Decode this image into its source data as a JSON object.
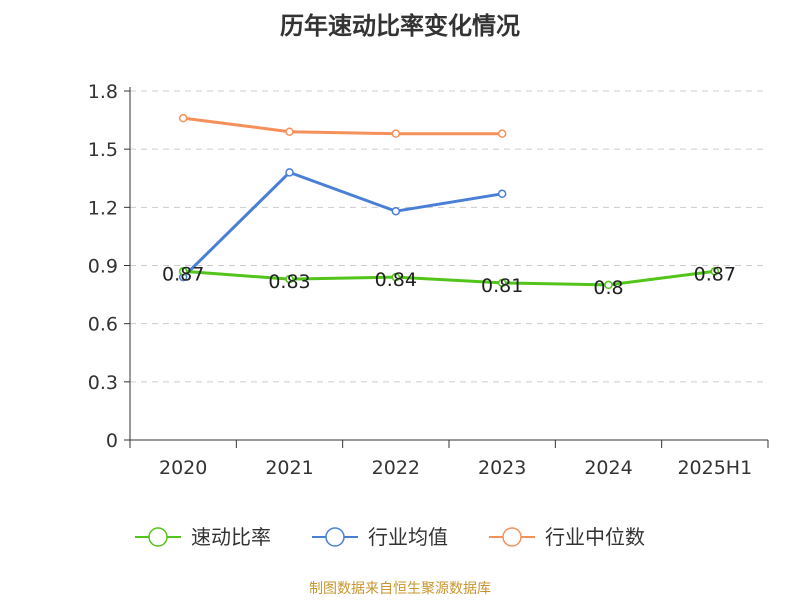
{
  "chart_data": {
    "type": "line",
    "title": "历年速动比率变化情况",
    "categories": [
      "2020",
      "2021",
      "2022",
      "2023",
      "2024",
      "2025H1"
    ],
    "yticks": [
      "0",
      "0.3",
      "0.6",
      "0.9",
      "1.2",
      "1.5",
      "1.8"
    ],
    "ylim": [
      0,
      1.8
    ],
    "grid": true,
    "legend_position": "bottom",
    "series": [
      {
        "name": "速动比率",
        "color": "#52c41a",
        "values": [
          0.87,
          0.83,
          0.84,
          0.81,
          0.8,
          0.87
        ],
        "labels": [
          "0.87",
          "0.83",
          "0.84",
          "0.81",
          "0.8",
          "0.87"
        ]
      },
      {
        "name": "行业均值",
        "color": "#4a7fd6",
        "values": [
          0.84,
          1.38,
          1.18,
          1.27,
          null,
          null
        ]
      },
      {
        "name": "行业中位数",
        "color": "#f5905a",
        "values": [
          1.66,
          1.59,
          1.58,
          1.58,
          null,
          null
        ]
      }
    ]
  },
  "source": "制图数据来自恒生聚源数据库"
}
